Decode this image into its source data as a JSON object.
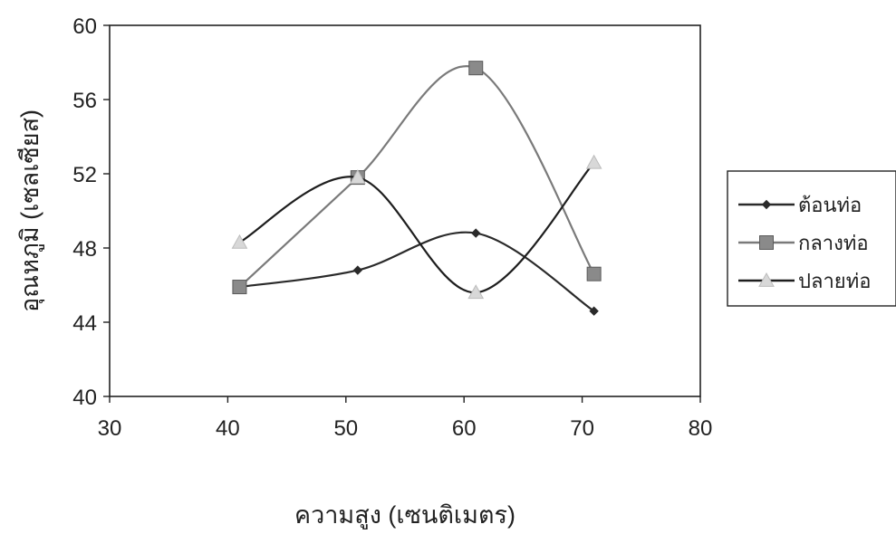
{
  "chart_data": {
    "type": "line",
    "title": "",
    "xlabel": "ความสูง (เซนติเมตร)",
    "ylabel": "อุณหภูมิ (เซลเซียส)",
    "xlim": [
      30,
      80
    ],
    "ylim": [
      40,
      60
    ],
    "x_ticks": [
      "30",
      "40",
      "50",
      "60",
      "70",
      "80"
    ],
    "y_ticks": [
      "40",
      "44",
      "48",
      "52",
      "56",
      "60"
    ],
    "grid": false,
    "legend_position": "right",
    "smooth": true,
    "series": [
      {
        "name": "ต้อนท่อ",
        "marker": "diamond",
        "color": "#2a2a2a",
        "x": [
          41,
          51,
          61,
          71
        ],
        "y": [
          45.9,
          46.8,
          48.8,
          44.6
        ]
      },
      {
        "name": "กลางท่อ",
        "marker": "square",
        "color": "#7a7a7a",
        "x": [
          41,
          51,
          61,
          71
        ],
        "y": [
          45.9,
          51.8,
          57.7,
          46.6
        ]
      },
      {
        "name": "ปลายท่อ",
        "marker": "triangle",
        "color": "#1e1e1e",
        "x": [
          41,
          51,
          61,
          71
        ],
        "y": [
          48.3,
          51.8,
          45.6,
          52.6
        ]
      }
    ]
  }
}
